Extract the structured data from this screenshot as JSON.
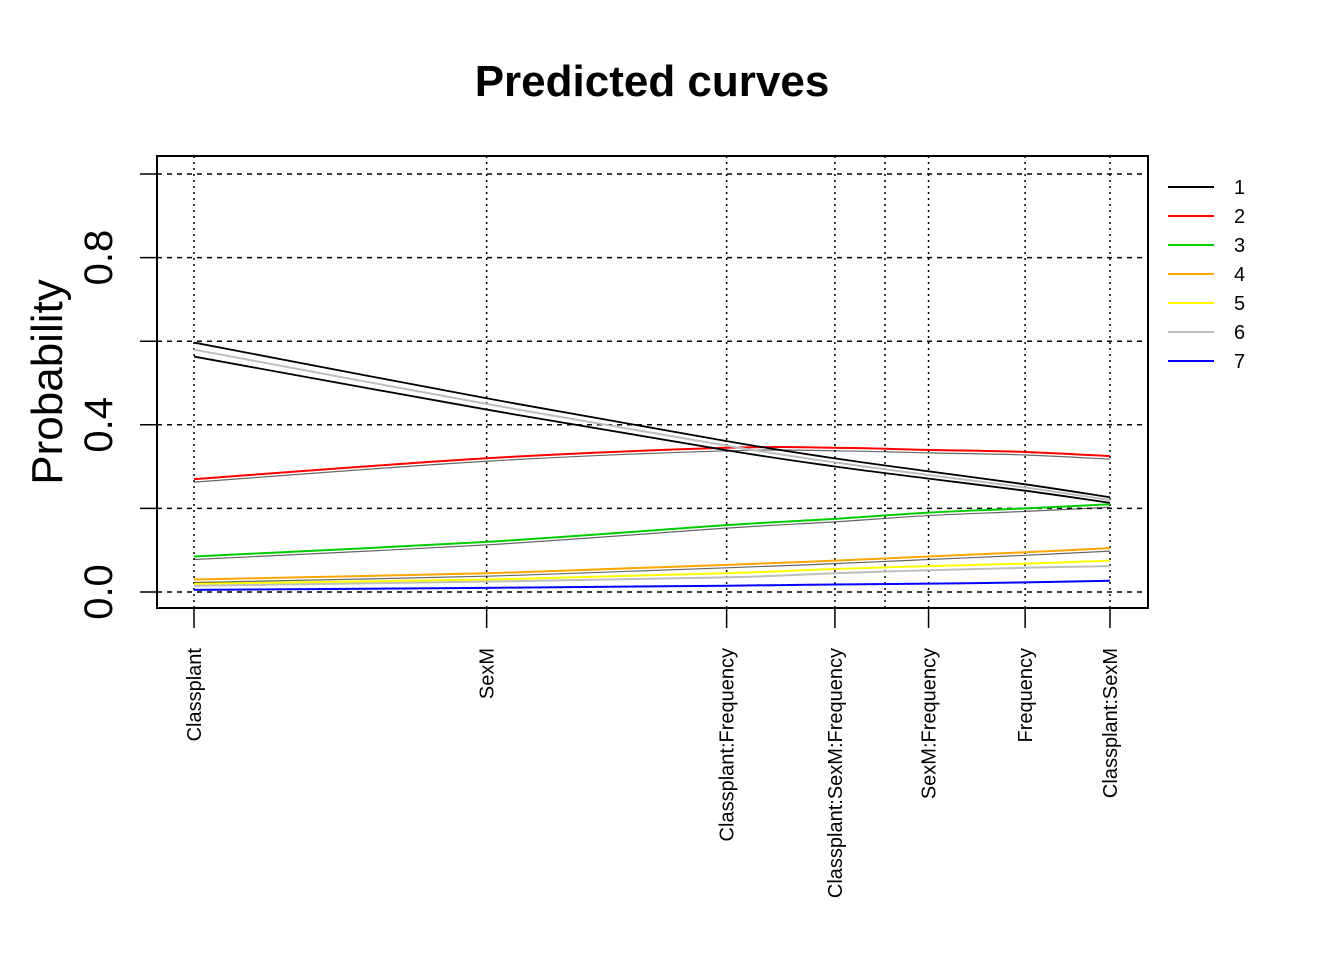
{
  "chart_data": {
    "type": "line",
    "title": "Predicted curves",
    "ylabel": "Probability",
    "xlabel": "",
    "ylim": [
      0,
      1
    ],
    "y_ticks": [
      "0.0",
      "0.4",
      "0.8"
    ],
    "grid": true,
    "legend_position": "top-right (outside plot)",
    "x": [
      0,
      1,
      1.82,
      2.19,
      2.51,
      2.84,
      3.13
    ],
    "x_tick_labels": [
      "Classplant",
      "SexM",
      "Classplant:Frequency",
      "Classplant:SexM:Frequency",
      "SexM:Frequency",
      "Frequency",
      "Classplant:SexM"
    ],
    "series": [
      {
        "name": "1",
        "color": "#000000",
        "values": [
          0.58,
          0.45,
          0.35,
          0.31,
          0.28,
          0.25,
          0.22
        ]
      },
      {
        "name": "2",
        "color": "#ff0000",
        "values": [
          0.27,
          0.32,
          0.345,
          0.345,
          0.34,
          0.335,
          0.325
        ]
      },
      {
        "name": "3",
        "color": "#00cd00",
        "values": [
          0.085,
          0.12,
          0.16,
          0.175,
          0.19,
          0.2,
          0.21
        ]
      },
      {
        "name": "4",
        "color": "#ffa500",
        "values": [
          0.03,
          0.045,
          0.065,
          0.075,
          0.085,
          0.095,
          0.105
        ]
      },
      {
        "name": "5",
        "color": "#ffff00",
        "values": [
          0.02,
          0.03,
          0.045,
          0.055,
          0.062,
          0.068,
          0.075
        ]
      },
      {
        "name": "6",
        "color": "#bebebe",
        "values": [
          0.015,
          0.025,
          0.035,
          0.045,
          0.052,
          0.058,
          0.062
        ]
      },
      {
        "name": "7",
        "color": "#0000ff",
        "values": [
          0.005,
          0.01,
          0.015,
          0.018,
          0.02,
          0.023,
          0.027
        ]
      }
    ]
  }
}
